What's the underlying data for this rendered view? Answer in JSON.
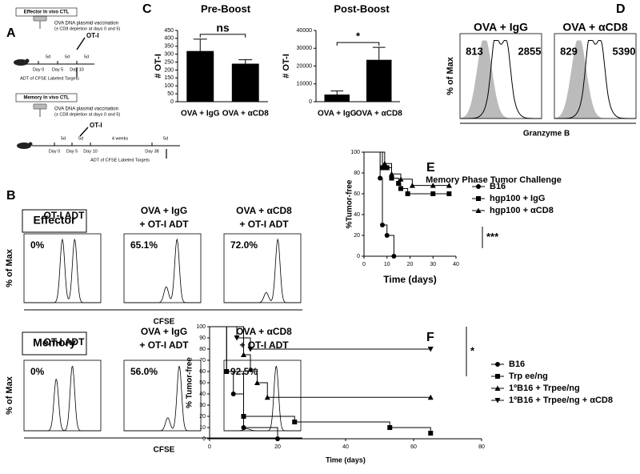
{
  "panel_letters": [
    "A",
    "B",
    "C",
    "D",
    "E",
    "F"
  ],
  "panel_a": {
    "effector": {
      "title": "Effector In vivo CTL",
      "vaccination": "OVA DNA plasmid vaccination",
      "depletion": "(± CD8 depletion at days 0 and 5)",
      "cells": "OT-I",
      "intervals": [
        "5d",
        "5d",
        "5d"
      ],
      "days": [
        "Day 0",
        "Day 5",
        "Day 10"
      ],
      "transfer": "ADT of CFSE Labeled Targets"
    },
    "memory": {
      "title": "Memory In vivo CTL",
      "vaccination": "OVA DNA plasmid vaccination",
      "depletion": "(± CD8 depletion at days 0 and 5)",
      "cells": "OT-I",
      "intervals": [
        "5d",
        "5d",
        "4 weeks",
        "5d"
      ],
      "days": [
        "Day 0",
        "Day 5",
        "Day 10",
        "Day 38"
      ],
      "transfer": "ADT of CFSE Labeled Targets"
    }
  },
  "panel_b": {
    "ylabel": "% of Max",
    "xlabel": "CFSE",
    "groups": [
      {
        "name": "Effector",
        "columns": [
          {
            "title": [
              "OT-I ADT"
            ],
            "percent": "0%"
          },
          {
            "title": [
              "OVA + IgG",
              "+ OT-I ADT"
            ],
            "percent": "65.1%"
          },
          {
            "title": [
              "OVA + αCD8",
              "+ OT-I ADT"
            ],
            "percent": "72.0%"
          }
        ]
      },
      {
        "name": "Memory",
        "columns": [
          {
            "title": [
              "OT-I ADT"
            ],
            "percent": "0%"
          },
          {
            "title": [
              "OVA + IgG",
              "+ OT-I ADT"
            ],
            "percent": "56.0%"
          },
          {
            "title": [
              "OVA + αCD8",
              "+ OT-I ADT"
            ],
            "percent": "92.5%"
          }
        ]
      }
    ]
  },
  "panel_d": {
    "ylabel": "% of Max",
    "xlabel": "Granzyme B",
    "columns": [
      {
        "title": "OVA + IgG",
        "control": "813",
        "value": "2855"
      },
      {
        "title": "OVA + αCD8",
        "control": "829",
        "value": "5390"
      }
    ]
  },
  "chart_data": [
    {
      "type": "bar",
      "title": "Pre-Boost",
      "ylabel": "# OT-I",
      "categories": [
        "OVA + IgG",
        "OVA + αCD8"
      ],
      "values": [
        320,
        240
      ],
      "errors": [
        75,
        25
      ],
      "color": "#000000",
      "ylim": [
        0,
        450
      ],
      "yticks": [
        0,
        50,
        100,
        150,
        200,
        250,
        300,
        350,
        400,
        450
      ],
      "annotation": "ns"
    },
    {
      "type": "bar",
      "title": "Post-Boost",
      "ylabel": "# OT-I",
      "categories": [
        "OVA + IgG",
        "OVA + αCD8"
      ],
      "values": [
        4000,
        23500
      ],
      "errors": [
        2000,
        7000
      ],
      "color": "#000000",
      "ylim": [
        0,
        40000
      ],
      "yticks": [
        0,
        10000,
        20000,
        30000,
        40000
      ],
      "annotation": "*"
    },
    {
      "type": "line",
      "title": "Memory  Phase Tumor Challenge",
      "xlabel": "Time (days)",
      "ylabel": "%Tumor-free",
      "xlim": [
        0,
        40
      ],
      "xticks": [
        0,
        10,
        20,
        30,
        40
      ],
      "ylim": [
        0,
        100
      ],
      "yticks": [
        0,
        20,
        40,
        60,
        80,
        100
      ],
      "annotation": "***",
      "series": [
        {
          "name": "B16",
          "color": "#000000",
          "marker": "circle",
          "x": [
            0,
            7,
            8,
            10,
            13
          ],
          "values": [
            100,
            75,
            30,
            20,
            0
          ]
        },
        {
          "name": "hgp100 + IgG",
          "color": "#000000",
          "marker": "square",
          "x": [
            0,
            8,
            10,
            12,
            15,
            16,
            19,
            30,
            37
          ],
          "values": [
            100,
            85,
            85,
            75,
            70,
            65,
            60,
            60,
            60
          ]
        },
        {
          "name": "hgp100 + αCD8",
          "color": "#000000",
          "marker": "triangle",
          "x": [
            0,
            9,
            12,
            16,
            21,
            30,
            37
          ],
          "values": [
            100,
            89,
            79,
            74,
            68,
            68,
            68
          ]
        }
      ]
    },
    {
      "type": "line",
      "xlabel": "Time (days)",
      "ylabel": "% Tumor-free",
      "xlim": [
        0,
        80
      ],
      "xticks": [
        0,
        20,
        40,
        60,
        80
      ],
      "ylim": [
        0,
        100
      ],
      "yticks": [
        0,
        10,
        20,
        30,
        40,
        50,
        60,
        70,
        80,
        90,
        100
      ],
      "annotation": "*",
      "series": [
        {
          "name": "B16",
          "color": "#000000",
          "marker": "circle",
          "x": [
            0,
            5,
            7,
            10,
            20
          ],
          "values": [
            100,
            60,
            40,
            10,
            0
          ]
        },
        {
          "name": "Trp ee/ng",
          "color": "#000000",
          "marker": "square",
          "x": [
            0,
            5,
            10,
            25,
            53,
            65
          ],
          "values": [
            100,
            60,
            20,
            15,
            10,
            5
          ]
        },
        {
          "name": "1ºB16 + Trpee/ng",
          "color": "#000000",
          "marker": "triangle",
          "x": [
            0,
            10,
            12,
            14,
            17,
            65
          ],
          "values": [
            100,
            75,
            62,
            50,
            37,
            37
          ]
        },
        {
          "name": "1ºB16 + Trpee/ng + αCD8",
          "color": "#000000",
          "marker": "triangle-down",
          "x": [
            0,
            8,
            12,
            65
          ],
          "values": [
            100,
            90,
            80,
            80
          ]
        }
      ]
    }
  ]
}
